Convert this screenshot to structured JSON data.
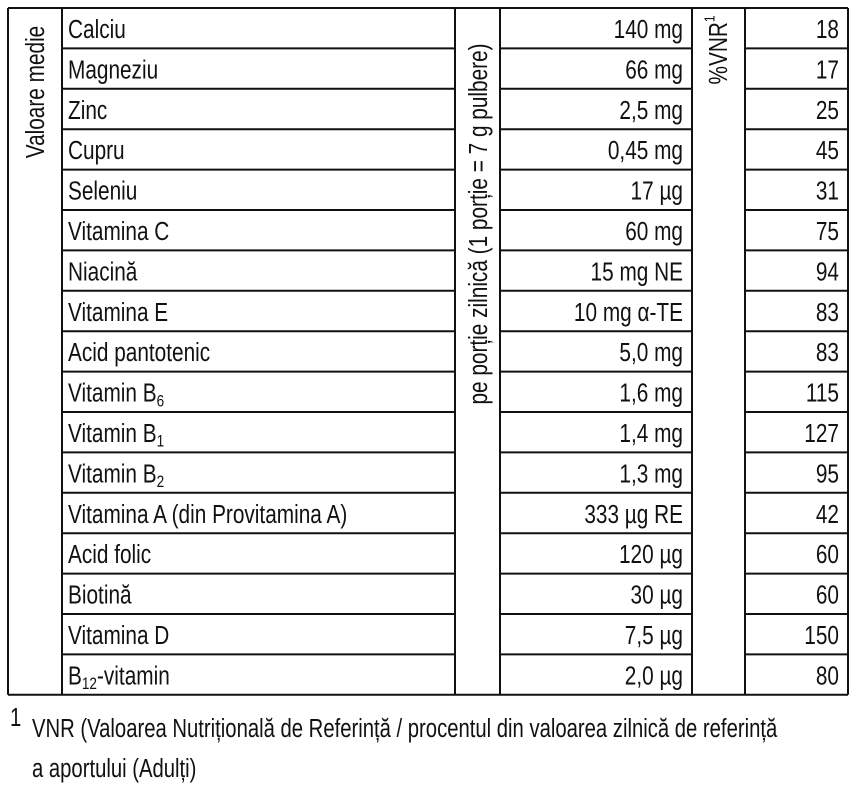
{
  "table": {
    "row_header": "Valoare medie",
    "amount_header": "pe porție zilnică (1 porție = 7 g pulbere)",
    "vnr_header": {
      "text": "%VNR",
      "sup": "1"
    },
    "rows": [
      {
        "nutrient": {
          "text": "Calciu"
        },
        "amount": "140 mg",
        "vnr": 18
      },
      {
        "nutrient": {
          "text": "Magneziu"
        },
        "amount": "66 mg",
        "vnr": 17
      },
      {
        "nutrient": {
          "text": "Zinc"
        },
        "amount": "2,5 mg",
        "vnr": 25
      },
      {
        "nutrient": {
          "text": "Cupru"
        },
        "amount": "0,45 mg",
        "vnr": 45
      },
      {
        "nutrient": {
          "text": "Seleniu"
        },
        "amount": "17 µg",
        "vnr": 31
      },
      {
        "nutrient": {
          "text": "Vitamina C"
        },
        "amount": "60 mg",
        "vnr": 75
      },
      {
        "nutrient": {
          "text": "Niacină"
        },
        "amount": "15 mg NE",
        "vnr": 94
      },
      {
        "nutrient": {
          "text": "Vitamina E"
        },
        "amount": "10 mg α-TE",
        "vnr": 83
      },
      {
        "nutrient": {
          "text": "Acid pantotenic"
        },
        "amount": "5,0 mg",
        "vnr": 83
      },
      {
        "nutrient": {
          "text": "Vitamin B",
          "sub": "6"
        },
        "amount": "1,6 mg",
        "vnr": 115
      },
      {
        "nutrient": {
          "text": "Vitamin B",
          "sub": "1"
        },
        "amount": "1,4 mg",
        "vnr": 127
      },
      {
        "nutrient": {
          "text": "Vitamin B",
          "sub": "2"
        },
        "amount": "1,3 mg",
        "vnr": 95
      },
      {
        "nutrient": {
          "text": "Vitamina A (din Provitamina A)"
        },
        "amount": "333 µg RE",
        "vnr": 42
      },
      {
        "nutrient": {
          "text": "Acid folic"
        },
        "amount": "120 µg",
        "vnr": 60
      },
      {
        "nutrient": {
          "text": "Biotină"
        },
        "amount": "30 µg",
        "vnr": 60
      },
      {
        "nutrient": {
          "text": "Vitamina D"
        },
        "amount": "7,5 µg",
        "vnr": 150
      },
      {
        "nutrient": {
          "text": "B",
          "sub": "12",
          "suffix": "-vitamin"
        },
        "amount": "2,0 µg",
        "vnr": 80
      }
    ]
  },
  "footnote": {
    "marker": "1",
    "lines": [
      "VNR (Valoarea Nutrițională de Referință / procentul din valoarea zilnică de referință",
      "a aportului (Adulți)"
    ]
  }
}
